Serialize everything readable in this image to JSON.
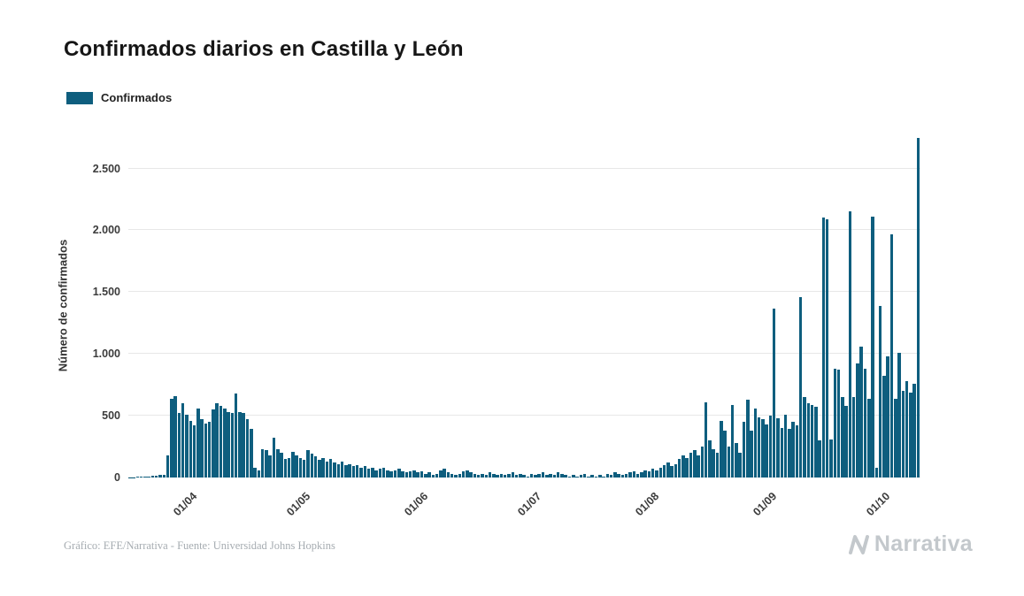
{
  "header": {
    "title": "Confirmados diarios en Castilla y León"
  },
  "legend": {
    "items": [
      {
        "label": "Confirmados",
        "color": "#0e5e7e"
      }
    ]
  },
  "chart_data": {
    "type": "bar",
    "title": "Confirmados diarios en Castilla y León",
    "ylabel": "Número de confirmados",
    "xlabel": "",
    "legend": [
      "Confirmados"
    ],
    "legend_position": "top-left",
    "grid": "horizontal",
    "bar_color": "#0e5e7e",
    "grid_color": "#e7e7e7",
    "ylim": [
      0,
      2790
    ],
    "yticks": [
      {
        "value": 0,
        "label": "0"
      },
      {
        "value": 500,
        "label": "500"
      },
      {
        "value": 1000,
        "label": "1.000"
      },
      {
        "value": 1500,
        "label": "1.500"
      },
      {
        "value": 2000,
        "label": "2.000"
      },
      {
        "value": 2500,
        "label": "2.500"
      }
    ],
    "xticklabels": [
      "01/04",
      "01/05",
      "01/06",
      "01/07",
      "01/08",
      "01/09",
      "01/10"
    ],
    "month_ticks": [
      {
        "index": 17,
        "label": "01/04"
      },
      {
        "index": 47,
        "label": "01/05"
      },
      {
        "index": 78,
        "label": "01/06"
      },
      {
        "index": 108,
        "label": "01/07"
      },
      {
        "index": 139,
        "label": "01/08"
      },
      {
        "index": 170,
        "label": "01/09"
      },
      {
        "index": 200,
        "label": "01/10"
      }
    ],
    "series": [
      {
        "name": "Confirmados",
        "values": [
          2,
          3,
          5,
          6,
          8,
          10,
          12,
          15,
          20,
          25,
          180,
          640,
          660,
          520,
          600,
          510,
          460,
          420,
          560,
          470,
          440,
          450,
          550,
          600,
          580,
          560,
          530,
          520,
          680,
          530,
          520,
          470,
          390,
          80,
          60,
          230,
          220,
          180,
          320,
          230,
          200,
          150,
          160,
          210,
          180,
          160,
          140,
          220,
          190,
          170,
          140,
          160,
          130,
          150,
          120,
          110,
          130,
          100,
          110,
          90,
          100,
          80,
          90,
          70,
          80,
          60,
          70,
          80,
          60,
          50,
          60,
          70,
          50,
          40,
          50,
          60,
          40,
          50,
          30,
          40,
          20,
          30,
          60,
          70,
          40,
          30,
          20,
          30,
          50,
          60,
          40,
          30,
          20,
          30,
          20,
          40,
          30,
          20,
          30,
          20,
          30,
          40,
          20,
          30,
          20,
          10,
          30,
          20,
          30,
          40,
          20,
          30,
          20,
          40,
          30,
          20,
          10,
          20,
          10,
          20,
          30,
          10,
          20,
          10,
          20,
          10,
          30,
          20,
          40,
          30,
          20,
          30,
          40,
          50,
          30,
          40,
          60,
          50,
          70,
          60,
          80,
          100,
          120,
          90,
          110,
          150,
          180,
          160,
          200,
          220,
          180,
          250,
          610,
          300,
          230,
          200,
          460,
          380,
          250,
          590,
          280,
          200,
          450,
          630,
          380,
          560,
          490,
          470,
          430,
          500,
          1370,
          480,
          400,
          510,
          390,
          450,
          420,
          1460,
          650,
          600,
          590,
          570,
          300,
          2100,
          2090,
          310,
          880,
          870,
          650,
          580,
          2150,
          650,
          920,
          1060,
          880,
          640,
          2110,
          80,
          1390,
          820,
          980,
          1970,
          640,
          1010,
          700,
          780,
          690,
          760,
          2750
        ]
      }
    ]
  },
  "footer": {
    "credit": "Gráfico: EFE/Narrativa - Fuente: Universidad Johns Hopkins",
    "brand": "Narrativa"
  }
}
